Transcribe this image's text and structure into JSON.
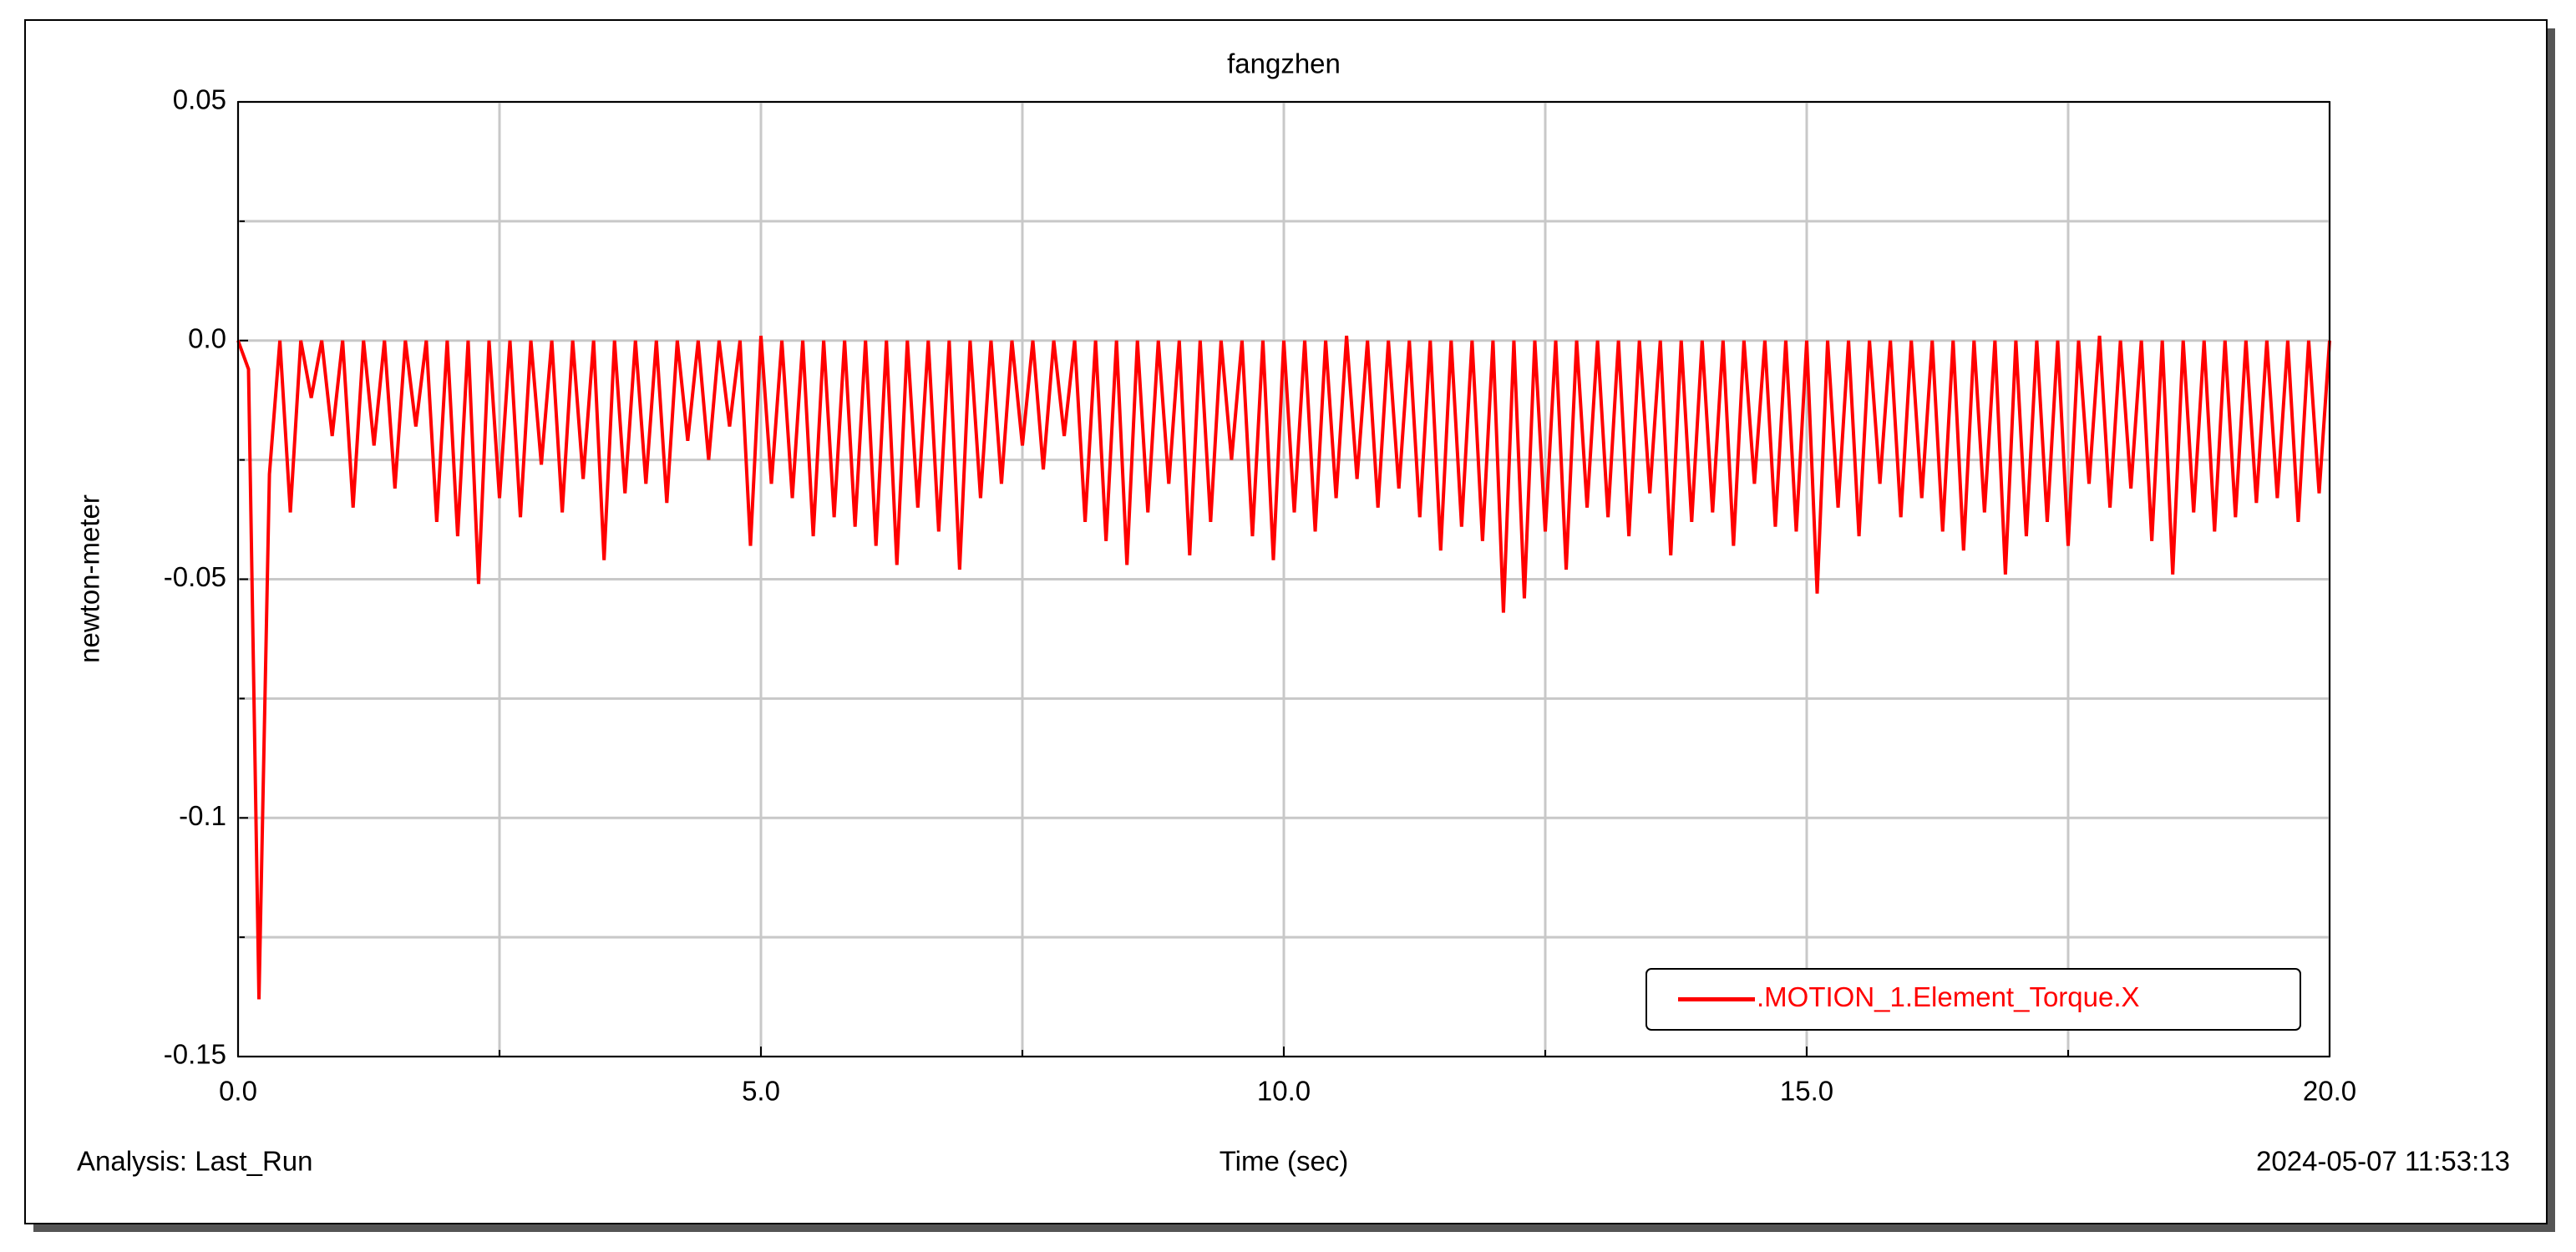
{
  "chart_data": {
    "type": "line",
    "title": "fangzhen",
    "x_label": "Time (sec)",
    "y_label": "newton-meter",
    "footer_left": "Analysis:  Last_Run",
    "footer_right": "2024-05-07 11:53:13",
    "xlim": [
      0,
      20
    ],
    "ylim": [
      -0.15,
      0.05
    ],
    "xticks": [
      {
        "value": 0,
        "label": "0.0"
      },
      {
        "value": 5,
        "label": "5.0"
      },
      {
        "value": 10,
        "label": "10.0"
      },
      {
        "value": 15,
        "label": "15.0"
      },
      {
        "value": 20,
        "label": "20.0"
      }
    ],
    "yticks": [
      -0.15,
      -0.1,
      -0.05,
      {
        "value": 0,
        "label": "0.0"
      },
      0.05
    ],
    "xminor_ticks": [
      2.5,
      7.5,
      12.5,
      17.5
    ],
    "yminor_ticks": [
      -0.125,
      -0.075,
      -0.025,
      0.025
    ],
    "grid": true,
    "legend_position": "lower-right",
    "x": [
      0,
      0.1,
      0.2,
      0.3,
      0.4,
      0.5,
      0.6,
      0.7,
      0.8,
      0.9,
      1,
      1.1,
      1.2,
      1.3,
      1.4,
      1.5,
      1.6,
      1.7,
      1.8,
      1.9,
      2,
      2.1,
      2.2,
      2.3,
      2.4,
      2.5,
      2.6,
      2.7,
      2.8,
      2.9,
      3,
      3.1,
      3.2,
      3.3,
      3.4,
      3.5,
      3.6,
      3.7,
      3.8,
      3.9,
      4,
      4.1,
      4.2,
      4.3,
      4.4,
      4.5,
      4.6,
      4.7,
      4.8,
      4.9,
      5,
      5.1,
      5.2,
      5.3,
      5.4,
      5.5,
      5.6,
      5.7,
      5.8,
      5.9,
      6,
      6.1,
      6.2,
      6.3,
      6.4,
      6.5,
      6.6,
      6.7,
      6.8,
      6.9,
      7,
      7.1,
      7.2,
      7.3,
      7.4,
      7.5,
      7.6,
      7.7,
      7.8,
      7.9,
      8,
      8.1,
      8.2,
      8.3,
      8.4,
      8.5,
      8.6,
      8.7,
      8.8,
      8.9,
      9,
      9.1,
      9.2,
      9.3,
      9.4,
      9.5,
      9.6,
      9.7,
      9.8,
      9.9,
      10,
      10.1,
      10.2,
      10.3,
      10.4,
      10.5,
      10.6,
      10.7,
      10.8,
      10.9,
      11,
      11.1,
      11.2,
      11.3,
      11.4,
      11.5,
      11.6,
      11.7,
      11.8,
      11.9,
      12,
      12.1,
      12.2,
      12.3,
      12.4,
      12.5,
      12.6,
      12.7,
      12.8,
      12.9,
      13,
      13.1,
      13.2,
      13.3,
      13.4,
      13.5,
      13.6,
      13.7,
      13.8,
      13.9,
      14,
      14.1,
      14.2,
      14.3,
      14.4,
      14.5,
      14.6,
      14.7,
      14.8,
      14.9,
      15,
      15.1,
      15.2,
      15.3,
      15.4,
      15.5,
      15.6,
      15.7,
      15.8,
      15.9,
      16,
      16.1,
      16.2,
      16.3,
      16.4,
      16.5,
      16.6,
      16.7,
      16.8,
      16.9,
      17,
      17.1,
      17.2,
      17.3,
      17.4,
      17.5,
      17.6,
      17.7,
      17.8,
      17.9,
      18,
      18.1,
      18.2,
      18.3,
      18.4,
      18.5,
      18.6,
      18.7,
      18.8,
      18.9,
      19,
      19.1,
      19.2,
      19.3,
      19.4,
      19.5,
      19.6,
      19.7,
      19.8,
      19.9,
      20
    ],
    "series": [
      {
        "name": ".MOTION_1.Element_Torque.X",
        "color": "#ff0000",
        "values": [
          0,
          -0.006,
          -0.138,
          -0.028,
          0,
          -0.036,
          0,
          -0.012,
          0,
          -0.02,
          0,
          -0.035,
          0,
          -0.022,
          0,
          -0.031,
          0,
          -0.018,
          0,
          -0.038,
          0,
          -0.041,
          0,
          -0.051,
          0,
          -0.033,
          0,
          -0.037,
          0,
          -0.026,
          0,
          -0.036,
          0,
          -0.029,
          0,
          -0.046,
          0,
          -0.032,
          0,
          -0.03,
          0,
          -0.034,
          0,
          -0.021,
          0,
          -0.025,
          0,
          -0.018,
          0,
          -0.043,
          0.001,
          -0.03,
          0,
          -0.033,
          0,
          -0.041,
          0,
          -0.037,
          0,
          -0.039,
          0,
          -0.043,
          0,
          -0.047,
          0,
          -0.035,
          0,
          -0.04,
          0,
          -0.048,
          0,
          -0.033,
          0,
          -0.03,
          0,
          -0.022,
          0,
          -0.027,
          0,
          -0.02,
          0,
          -0.038,
          0,
          -0.042,
          0,
          -0.047,
          0,
          -0.036,
          0,
          -0.03,
          0,
          -0.045,
          0,
          -0.038,
          0,
          -0.025,
          0,
          -0.041,
          0,
          -0.046,
          0,
          -0.036,
          0,
          -0.04,
          0,
          -0.033,
          0.001,
          -0.029,
          0,
          -0.035,
          0,
          -0.031,
          0,
          -0.037,
          0,
          -0.044,
          0,
          -0.039,
          0,
          -0.042,
          0,
          -0.057,
          0,
          -0.054,
          0,
          -0.04,
          0,
          -0.048,
          0,
          -0.035,
          0,
          -0.037,
          0,
          -0.041,
          0,
          -0.032,
          0,
          -0.045,
          0,
          -0.038,
          0,
          -0.036,
          0,
          -0.043,
          0,
          -0.03,
          0,
          -0.039,
          0,
          -0.04,
          0,
          -0.053,
          0,
          -0.035,
          0,
          -0.041,
          0,
          -0.03,
          0,
          -0.037,
          0,
          -0.033,
          0,
          -0.04,
          0,
          -0.044,
          0,
          -0.036,
          0,
          -0.049,
          0,
          -0.041,
          0,
          -0.038,
          0,
          -0.043,
          0,
          -0.03,
          0.001,
          -0.035,
          0,
          -0.031,
          0,
          -0.042,
          0,
          -0.049,
          0,
          -0.036,
          0,
          -0.04,
          0,
          -0.037,
          0,
          -0.034,
          0,
          -0.033,
          0,
          -0.038,
          0,
          -0.032,
          0
        ]
      }
    ]
  }
}
